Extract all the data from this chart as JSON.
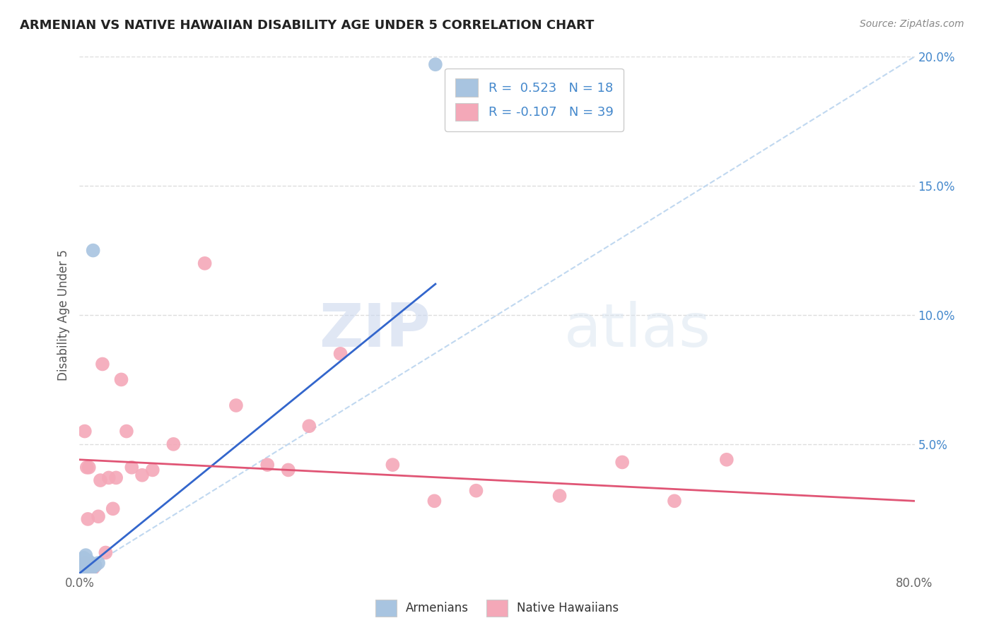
{
  "title": "ARMENIAN VS NATIVE HAWAIIAN DISABILITY AGE UNDER 5 CORRELATION CHART",
  "source": "Source: ZipAtlas.com",
  "ylabel": "Disability Age Under 5",
  "xlim": [
    0.0,
    0.8
  ],
  "ylim": [
    0.0,
    0.2
  ],
  "xticks": [
    0.0,
    0.8
  ],
  "xtick_labels": [
    "0.0%",
    "80.0%"
  ],
  "yticks_right": [
    0.05,
    0.1,
    0.15,
    0.2
  ],
  "ytick_labels_right": [
    "5.0%",
    "10.0%",
    "15.0%",
    "20.0%"
  ],
  "armenian_R": 0.523,
  "armenian_N": 18,
  "hawaiian_R": -0.107,
  "hawaiian_N": 39,
  "armenian_color": "#a8c4e0",
  "hawaiian_color": "#f4a8b8",
  "armenian_line_color": "#3366cc",
  "hawaiian_line_color": "#e05575",
  "ref_line_color": "#c0d8f0",
  "background_color": "#ffffff",
  "grid_color": "#dddddd",
  "watermark_zip": "ZIP",
  "watermark_atlas": "atlas",
  "armenian_x": [
    0.003,
    0.003,
    0.004,
    0.004,
    0.005,
    0.006,
    0.006,
    0.007,
    0.008,
    0.009,
    0.01,
    0.011,
    0.012,
    0.013,
    0.015,
    0.018,
    0.341,
    0.005
  ],
  "armenian_y": [
    0.001,
    0.003,
    0.002,
    0.006,
    0.004,
    0.003,
    0.007,
    0.003,
    0.005,
    0.004,
    0.003,
    0.004,
    0.002,
    0.125,
    0.003,
    0.004,
    0.197,
    0.002
  ],
  "armenian_line_x0": 0.0,
  "armenian_line_y0": 0.0,
  "armenian_line_x1": 0.341,
  "armenian_line_y1": 0.112,
  "hawaiian_line_x0": 0.0,
  "hawaiian_line_y0": 0.044,
  "hawaiian_line_x1": 0.8,
  "hawaiian_line_y1": 0.028,
  "hawaiian_x": [
    0.003,
    0.004,
    0.005,
    0.006,
    0.006,
    0.007,
    0.008,
    0.009,
    0.01,
    0.012,
    0.013,
    0.015,
    0.018,
    0.02,
    0.022,
    0.025,
    0.028,
    0.032,
    0.035,
    0.04,
    0.045,
    0.05,
    0.06,
    0.07,
    0.09,
    0.12,
    0.15,
    0.18,
    0.2,
    0.22,
    0.25,
    0.3,
    0.34,
    0.38,
    0.46,
    0.52,
    0.57,
    0.62,
    0.005
  ],
  "hawaiian_y": [
    0.001,
    0.002,
    0.055,
    0.003,
    0.004,
    0.041,
    0.021,
    0.041,
    0.002,
    0.003,
    0.002,
    0.003,
    0.022,
    0.036,
    0.081,
    0.008,
    0.037,
    0.025,
    0.037,
    0.075,
    0.055,
    0.041,
    0.038,
    0.04,
    0.05,
    0.12,
    0.065,
    0.042,
    0.04,
    0.057,
    0.085,
    0.042,
    0.028,
    0.032,
    0.03,
    0.043,
    0.028,
    0.044,
    0.004
  ]
}
